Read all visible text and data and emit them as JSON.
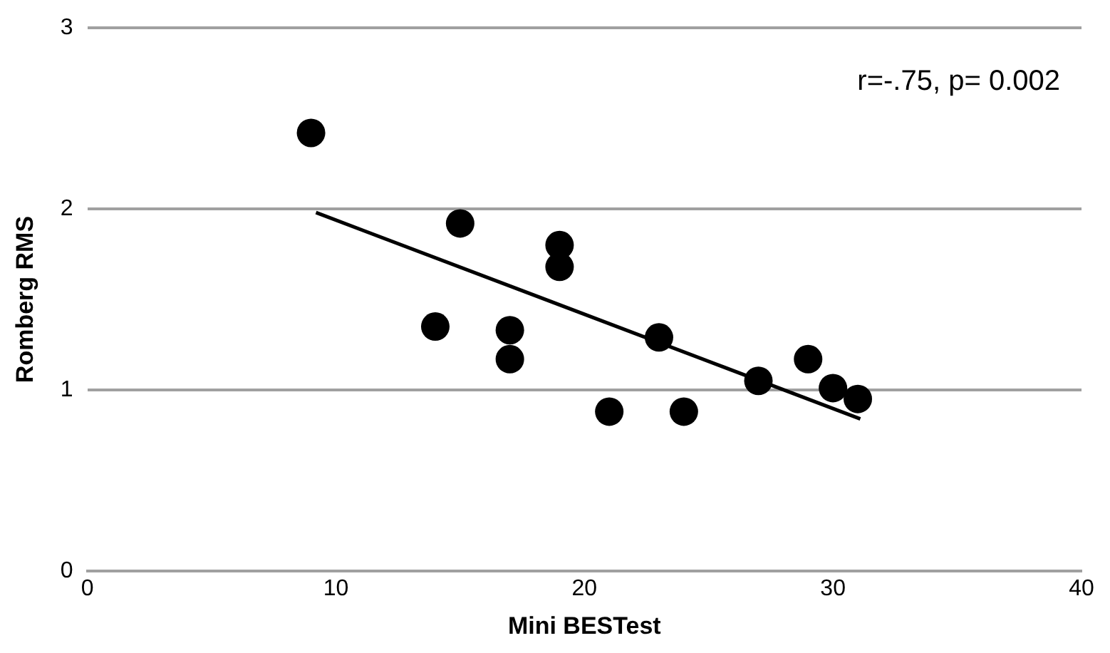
{
  "chart_data": {
    "type": "scatter",
    "xlabel": "Mini BESTest",
    "ylabel": "Romberg RMS",
    "annotations": [
      "r=-.75, p= 0.002"
    ],
    "xlim": [
      0,
      40
    ],
    "xticks": [
      0,
      10,
      20,
      30,
      40
    ],
    "ylim": [
      0,
      3
    ],
    "yticks": [
      0,
      1,
      2,
      3
    ],
    "grid": "y",
    "legend": false,
    "marker": "circle",
    "series": [
      {
        "color": "#000000",
        "x": [
          9,
          15,
          14,
          17,
          17,
          19,
          19,
          21,
          23,
          24,
          27,
          29,
          30,
          31
        ],
        "values": [
          2.42,
          1.92,
          1.35,
          1.33,
          1.17,
          1.8,
          1.68,
          0.88,
          1.29,
          0.88,
          1.05,
          1.17,
          1.01,
          0.95
        ]
      },
      {
        "type": "line",
        "color": "#000000",
        "marker": "none",
        "x": [
          9.2,
          31.1
        ],
        "values": [
          1.98,
          0.84
        ]
      }
    ]
  }
}
